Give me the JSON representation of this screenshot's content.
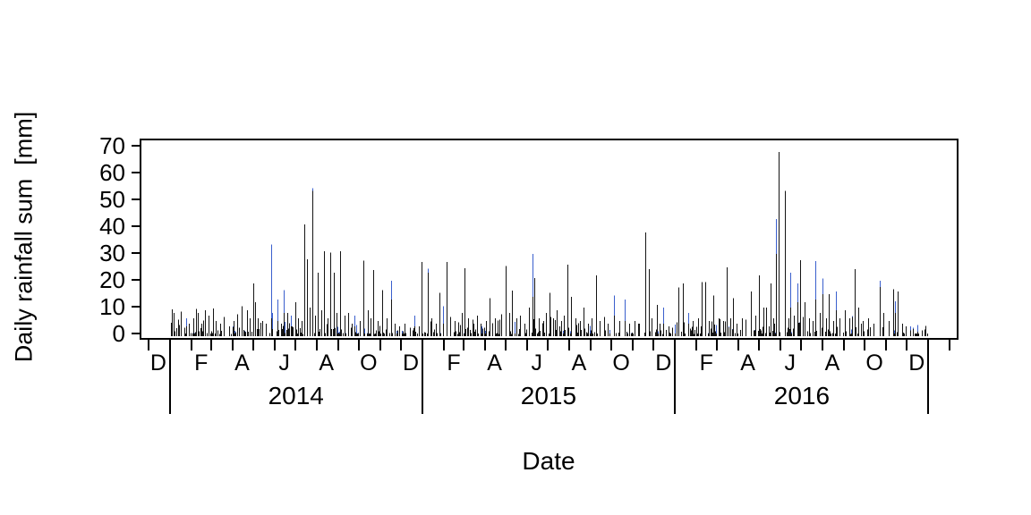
{
  "figure": {
    "background": "#ffffff",
    "axis_color": "#000000"
  },
  "chart_data": {
    "type": "bar",
    "title": "",
    "xlabel": "Date",
    "ylabel": "Daily rainfall sum  [mm]",
    "ylim": [
      0,
      70
    ],
    "yticks": [
      0,
      10,
      20,
      30,
      40,
      50,
      60,
      70
    ],
    "grid": false,
    "legend": "none",
    "x_range": {
      "data_start": "2014-01-01",
      "data_end": "2016-12-31",
      "axis_months_start": "2013-12-01",
      "axis_months_end": "2017-02-01"
    },
    "month_labels": [
      {
        "date": "2013-12-15",
        "text": "D"
      },
      {
        "date": "2014-02-15",
        "text": "F"
      },
      {
        "date": "2014-04-15",
        "text": "A"
      },
      {
        "date": "2014-06-15",
        "text": "J"
      },
      {
        "date": "2014-08-15",
        "text": "A"
      },
      {
        "date": "2014-10-15",
        "text": "O"
      },
      {
        "date": "2014-12-15",
        "text": "D"
      },
      {
        "date": "2015-02-15",
        "text": "F"
      },
      {
        "date": "2015-04-15",
        "text": "A"
      },
      {
        "date": "2015-06-15",
        "text": "J"
      },
      {
        "date": "2015-08-15",
        "text": "A"
      },
      {
        "date": "2015-10-15",
        "text": "O"
      },
      {
        "date": "2015-12-15",
        "text": "D"
      },
      {
        "date": "2016-02-15",
        "text": "F"
      },
      {
        "date": "2016-04-15",
        "text": "A"
      },
      {
        "date": "2016-06-15",
        "text": "J"
      },
      {
        "date": "2016-08-15",
        "text": "A"
      },
      {
        "date": "2016-10-15",
        "text": "O"
      },
      {
        "date": "2016-12-15",
        "text": "D"
      }
    ],
    "year_ticks": [
      "2014-01-01",
      "2015-01-01",
      "2016-01-01",
      "2017-01-01"
    ],
    "year_labels": [
      {
        "text": "2014",
        "center": "2014-07-02"
      },
      {
        "text": "2015",
        "center": "2015-07-02"
      },
      {
        "text": "2016",
        "center": "2016-07-02"
      }
    ],
    "series": [
      {
        "name": "rainfall-series-blue",
        "color": "#3A5FCD",
        "layer": "back"
      },
      {
        "name": "rainfall-series-black",
        "color": "#141414",
        "layer": "front"
      }
    ],
    "peaks": [
      [
        "2014-01-02",
        4.3
      ],
      [
        "2014-01-04",
        9.3
      ],
      [
        "2014-01-06",
        8
      ],
      [
        "2014-01-12",
        5.5
      ],
      [
        "2014-01-16",
        8.5
      ],
      [
        "2014-01-24",
        3,
        6
      ],
      [
        "2014-01-28",
        4
      ],
      [
        "2014-02-03",
        6
      ],
      [
        "2014-02-07",
        9.5
      ],
      [
        "2014-02-10",
        8
      ],
      [
        "2014-02-15",
        4
      ],
      [
        "2014-02-20",
        9
      ],
      [
        "2014-02-25",
        7
      ],
      [
        "2014-03-04",
        9.7
      ],
      [
        "2014-03-08",
        5
      ],
      [
        "2014-03-14",
        4
      ],
      [
        "2014-03-20",
        6.5
      ],
      [
        "2014-03-28",
        3
      ],
      [
        "2014-04-03",
        5
      ],
      [
        "2014-04-08",
        7.5
      ],
      [
        "2014-04-15",
        10.5
      ],
      [
        "2014-04-22",
        9
      ],
      [
        "2014-04-26",
        6
      ],
      [
        "2014-05-01",
        19
      ],
      [
        "2014-05-04",
        12
      ],
      [
        "2014-05-08",
        6
      ],
      [
        "2014-05-14",
        5
      ],
      [
        "2014-05-20",
        4
      ],
      [
        "2014-05-27",
        6,
        33.5
      ],
      [
        "2014-05-29",
        2,
        8
      ],
      [
        "2014-06-05",
        5,
        13
      ],
      [
        "2014-06-10",
        4
      ],
      [
        "2014-06-14",
        8,
        16.5
      ],
      [
        "2014-06-20",
        8
      ],
      [
        "2014-06-24",
        3,
        7
      ],
      [
        "2014-07-01",
        12
      ],
      [
        "2014-07-05",
        6
      ],
      [
        "2014-07-10",
        5
      ],
      [
        "2014-07-14",
        41
      ],
      [
        "2014-07-18",
        28
      ],
      [
        "2014-07-22",
        10
      ],
      [
        "2014-07-26",
        53.5,
        54.5
      ],
      [
        "2014-07-30",
        7
      ],
      [
        "2014-08-03",
        23
      ],
      [
        "2014-08-08",
        9
      ],
      [
        "2014-08-12",
        31
      ],
      [
        "2014-08-16",
        6
      ],
      [
        "2014-08-20",
        30.5
      ],
      [
        "2014-08-26",
        23
      ],
      [
        "2014-08-30",
        8
      ],
      [
        "2014-09-04",
        31
      ],
      [
        "2014-09-10",
        7
      ],
      [
        "2014-09-15",
        8
      ],
      [
        "2014-09-20",
        4
      ],
      [
        "2014-09-25",
        3,
        7
      ],
      [
        "2014-10-02",
        5
      ],
      [
        "2014-10-08",
        27.5
      ],
      [
        "2014-10-14",
        9
      ],
      [
        "2014-10-18",
        6
      ],
      [
        "2014-10-22",
        24
      ],
      [
        "2014-10-28",
        5
      ],
      [
        "2014-11-04",
        16.5
      ],
      [
        "2014-11-10",
        6
      ],
      [
        "2014-11-16",
        13,
        20
      ],
      [
        "2014-11-22",
        4
      ],
      [
        "2014-11-28",
        3
      ],
      [
        "2014-12-06",
        4
      ],
      [
        "2014-12-14",
        2.5
      ],
      [
        "2014-12-20",
        3,
        7
      ],
      [
        "2014-12-27",
        3
      ],
      [
        "2014-12-31",
        27
      ],
      [
        "2015-01-08",
        23,
        24.5
      ],
      [
        "2015-01-14",
        6
      ],
      [
        "2015-01-20",
        4
      ],
      [
        "2015-01-25",
        15.5
      ],
      [
        "2015-01-30",
        4,
        10.5
      ],
      [
        "2015-02-05",
        27
      ],
      [
        "2015-02-10",
        6.5
      ],
      [
        "2015-02-16",
        5
      ],
      [
        "2015-02-22",
        4.5
      ],
      [
        "2015-02-26",
        8
      ],
      [
        "2015-03-03",
        24.6
      ],
      [
        "2015-03-08",
        6
      ],
      [
        "2015-03-14",
        5.5
      ],
      [
        "2015-03-20",
        7
      ],
      [
        "2015-03-26",
        4
      ],
      [
        "2015-04-02",
        5
      ],
      [
        "2015-04-08",
        13.5
      ],
      [
        "2015-04-15",
        6
      ],
      [
        "2015-04-20",
        4
      ],
      [
        "2015-04-25",
        7.5
      ],
      [
        "2015-05-01",
        25.5
      ],
      [
        "2015-05-06",
        8
      ],
      [
        "2015-05-10",
        16.3
      ],
      [
        "2015-05-16",
        6
      ],
      [
        "2015-05-22",
        7
      ],
      [
        "2015-05-28",
        4
      ],
      [
        "2015-06-03",
        10
      ],
      [
        "2015-06-09",
        14,
        30
      ],
      [
        "2015-06-12",
        21
      ],
      [
        "2015-06-18",
        6
      ],
      [
        "2015-06-24",
        5
      ],
      [
        "2015-06-28",
        8
      ],
      [
        "2015-07-03",
        15.5
      ],
      [
        "2015-07-08",
        6
      ],
      [
        "2015-07-14",
        9
      ],
      [
        "2015-07-20",
        5
      ],
      [
        "2015-07-24",
        7
      ],
      [
        "2015-07-29",
        26
      ],
      [
        "2015-08-04",
        14
      ],
      [
        "2015-08-10",
        6
      ],
      [
        "2015-08-16",
        5
      ],
      [
        "2015-08-22",
        10
      ],
      [
        "2015-08-28",
        4
      ],
      [
        "2015-09-02",
        6
      ],
      [
        "2015-09-08",
        22
      ],
      [
        "2015-09-14",
        5
      ],
      [
        "2015-09-20",
        6.5
      ],
      [
        "2015-09-26",
        4
      ],
      [
        "2015-10-05",
        7,
        14.5
      ],
      [
        "2015-10-12",
        5
      ],
      [
        "2015-10-20",
        5,
        13
      ],
      [
        "2015-10-26",
        4
      ],
      [
        "2015-11-03",
        5
      ],
      [
        "2015-11-10",
        4
      ],
      [
        "2015-11-19",
        38
      ],
      [
        "2015-11-24",
        24.3
      ],
      [
        "2015-11-28",
        6
      ],
      [
        "2015-12-05",
        11
      ],
      [
        "2015-12-10",
        4
      ],
      [
        "2015-12-15",
        4,
        10
      ],
      [
        "2015-12-22",
        3
      ],
      [
        "2015-12-28",
        2.5
      ],
      [
        "2016-01-05",
        17.5
      ],
      [
        "2016-01-12",
        19
      ],
      [
        "2016-01-20",
        4,
        8
      ],
      [
        "2016-01-26",
        5
      ],
      [
        "2016-02-03",
        6
      ],
      [
        "2016-02-08",
        19.5
      ],
      [
        "2016-02-13",
        19.5
      ],
      [
        "2016-02-18",
        5
      ],
      [
        "2016-02-25",
        14.5
      ],
      [
        "2016-03-04",
        6
      ],
      [
        "2016-03-10",
        5
      ],
      [
        "2016-03-15",
        25
      ],
      [
        "2016-03-20",
        6
      ],
      [
        "2016-03-25",
        13.5
      ],
      [
        "2016-03-30",
        4
      ],
      [
        "2016-04-06",
        6
      ],
      [
        "2016-04-12",
        5.5
      ],
      [
        "2016-04-20",
        16
      ],
      [
        "2016-04-26",
        7
      ],
      [
        "2016-05-01",
        22
      ],
      [
        "2016-05-07",
        10
      ],
      [
        "2016-05-12",
        10
      ],
      [
        "2016-05-18",
        19
      ],
      [
        "2016-05-22",
        6
      ],
      [
        "2016-05-26",
        30,
        43
      ],
      [
        "2016-05-30",
        68,
        20
      ],
      [
        "2016-06-08",
        53.5
      ],
      [
        "2016-06-15",
        10,
        23
      ],
      [
        "2016-06-20",
        7
      ],
      [
        "2016-06-25",
        12,
        19
      ],
      [
        "2016-06-29",
        27.7
      ],
      [
        "2016-07-06",
        12
      ],
      [
        "2016-07-12",
        6
      ],
      [
        "2016-07-18",
        5
      ],
      [
        "2016-07-22",
        13,
        27.3
      ],
      [
        "2016-07-28",
        8
      ],
      [
        "2016-08-01",
        15,
        20.8
      ],
      [
        "2016-08-06",
        6
      ],
      [
        "2016-08-10",
        15
      ],
      [
        "2016-08-16",
        5
      ],
      [
        "2016-08-20",
        9,
        16
      ],
      [
        "2016-08-26",
        6
      ],
      [
        "2016-09-02",
        9
      ],
      [
        "2016-09-08",
        6
      ],
      [
        "2016-09-16",
        24.3
      ],
      [
        "2016-09-22",
        10
      ],
      [
        "2016-09-28",
        5
      ],
      [
        "2016-10-06",
        6
      ],
      [
        "2016-10-14",
        4
      ],
      [
        "2016-10-22",
        17.6,
        20
      ],
      [
        "2016-10-28",
        8
      ],
      [
        "2016-11-05",
        5
      ],
      [
        "2016-11-11",
        16.8
      ],
      [
        "2016-11-14",
        8,
        12.3
      ],
      [
        "2016-11-18",
        16
      ],
      [
        "2016-11-24",
        4
      ],
      [
        "2016-12-05",
        1.5,
        3
      ],
      [
        "2016-12-10",
        2,
        2.5
      ],
      [
        "2016-12-16",
        1,
        3.5
      ],
      [
        "2016-12-22",
        1.5
      ]
    ],
    "noise": {
      "seed": 20140101,
      "wet_probability": 0.38,
      "blue_only_probability": 0.05,
      "mean_mm": 1.5,
      "max_mm": 6.5,
      "blue_min_ratio": 0.25,
      "blue_max_ratio": 1.1
    }
  }
}
